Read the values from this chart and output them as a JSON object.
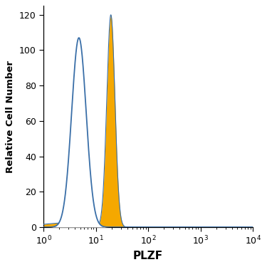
{
  "title": "",
  "xlabel": "PLZF",
  "ylabel": "Relative Cell Number",
  "xlim_log": [
    1,
    10000
  ],
  "ylim": [
    0,
    125
  ],
  "yticks": [
    0,
    20,
    40,
    60,
    80,
    100,
    120
  ],
  "blue_color": "#3a6fa8",
  "orange_color": "#f5a800",
  "bg_color": "#ffffff",
  "blue_peak_x_log10": 0.72,
  "blue_peak_y": 107,
  "blue_sigma": 0.32,
  "orange_peak_x_log10": 1.3,
  "orange_peak_y": 120,
  "orange_sigma": 0.18,
  "figsize": [
    3.75,
    3.75
  ],
  "dpi": 100
}
